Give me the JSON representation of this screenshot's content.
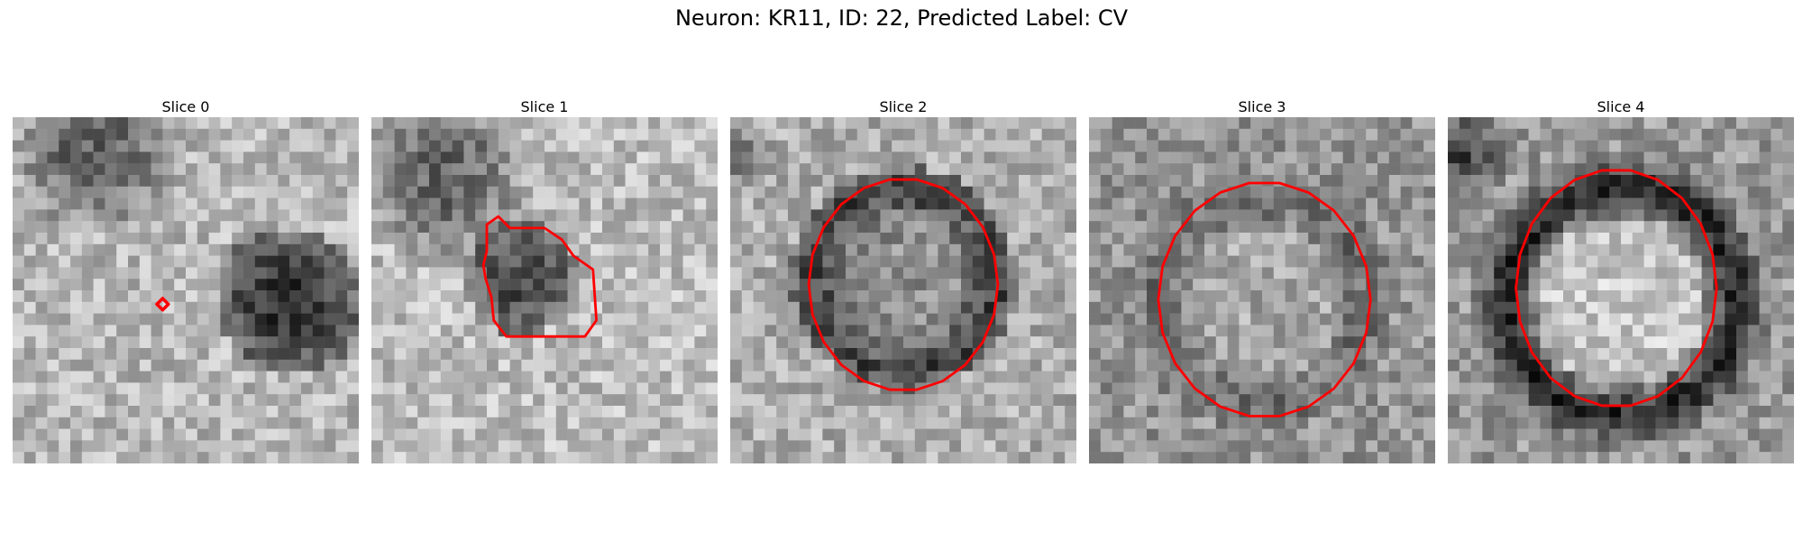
{
  "figure": {
    "title": "Neuron: KR11, ID: 22, Predicted Label: CV"
  },
  "panels": [
    {
      "title": "Slice 0",
      "contour": "tiny-diamond"
    },
    {
      "title": "Slice 1",
      "contour": "small-blob"
    },
    {
      "title": "Slice 2",
      "contour": "circle"
    },
    {
      "title": "Slice 3",
      "contour": "large-circle"
    },
    {
      "title": "Slice 4",
      "contour": "large-circle"
    }
  ],
  "colors": {
    "contour": "#ff0000",
    "background": "#ffffff"
  },
  "colormap": "gray"
}
